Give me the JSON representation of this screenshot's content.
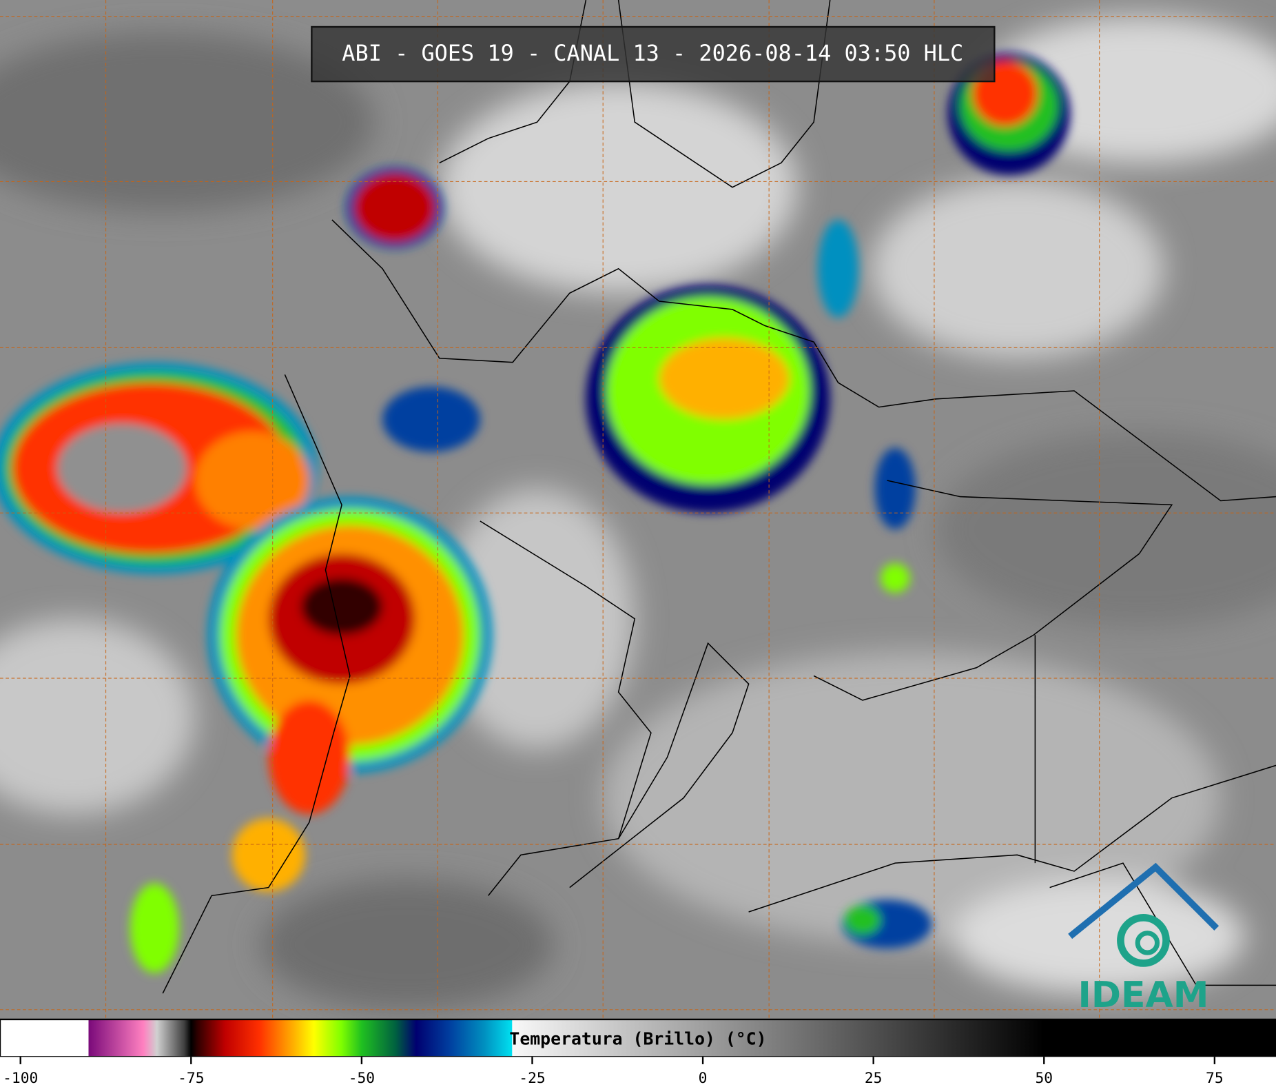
{
  "title": "ABI - GOES 19 - CANAL 13 - 2026-08-14 03:50 HLC",
  "logo": "IDEAM",
  "colorbar": {
    "label": "Temperatura (Brillo) (°C)",
    "xlim": [
      -103,
      84
    ],
    "ticks": [
      -100,
      -75,
      -50,
      -25,
      0,
      25,
      50,
      75
    ],
    "colormap": [
      {
        "value": -103,
        "color": "#ffffff"
      },
      {
        "value": -90,
        "color": "#ffffff"
      },
      {
        "value": -90,
        "color": "#7a0a7a"
      },
      {
        "value": -82,
        "color": "#ff80c0"
      },
      {
        "value": -80,
        "color": "#d0d0d0"
      },
      {
        "value": -76,
        "color": "#404040"
      },
      {
        "value": -75,
        "color": "#000000"
      },
      {
        "value": -74,
        "color": "#300000"
      },
      {
        "value": -70,
        "color": "#c00000"
      },
      {
        "value": -65,
        "color": "#ff3000"
      },
      {
        "value": -60,
        "color": "#ffb000"
      },
      {
        "value": -57,
        "color": "#ffff00"
      },
      {
        "value": -53,
        "color": "#80ff00"
      },
      {
        "value": -50,
        "color": "#20c020"
      },
      {
        "value": -45,
        "color": "#006040"
      },
      {
        "value": -42,
        "color": "#000070"
      },
      {
        "value": -37,
        "color": "#0040a0"
      },
      {
        "value": -32,
        "color": "#0090c0"
      },
      {
        "value": -28,
        "color": "#00e0f0"
      },
      {
        "value": -27.9,
        "color": "#f8f8f8"
      },
      {
        "value": 50,
        "color": "#000000"
      },
      {
        "value": 84,
        "color": "#000000"
      }
    ]
  }
}
